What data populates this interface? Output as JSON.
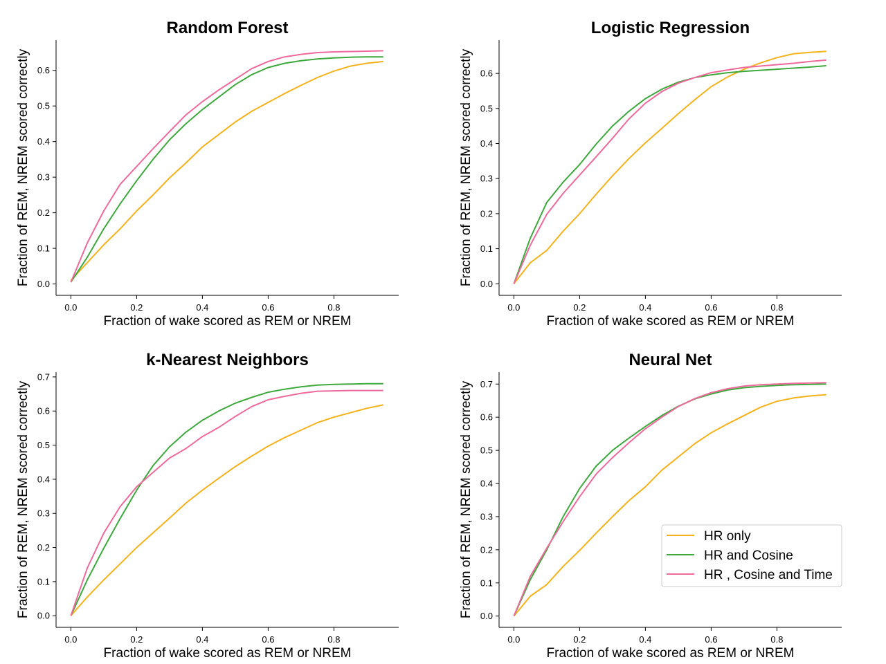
{
  "figure": {
    "legend_items": [
      "HR only",
      "HR and Cosine",
      "HR , Cosine and Time"
    ]
  },
  "chart_data": [
    {
      "type": "line",
      "title": "Random Forest",
      "xlabel": "Fraction of wake scored as REM or NREM",
      "ylabel": "Fraction of REM, NREM scored correctly",
      "xlim": [
        -0.045,
        0.997
      ],
      "ylim": [
        -0.032,
        0.685
      ],
      "xticks": [
        0.0,
        0.2,
        0.4,
        0.6,
        0.8
      ],
      "xtick_labels": [
        "0.0",
        "0.2",
        "0.4",
        "0.6",
        "0.8"
      ],
      "yticks": [
        0.0,
        0.1,
        0.2,
        0.3,
        0.4,
        0.5,
        0.6
      ],
      "ytick_labels": [
        "0.0",
        "0.1",
        "0.2",
        "0.3",
        "0.4",
        "0.5",
        "0.6"
      ],
      "grid": false,
      "legend": "none",
      "series": [
        {
          "name": "HR only",
          "color": "#f5b21b",
          "x": [
            0,
            0.05,
            0.1,
            0.15,
            0.2,
            0.25,
            0.3,
            0.35,
            0.4,
            0.45,
            0.5,
            0.55,
            0.6,
            0.65,
            0.7,
            0.75,
            0.8,
            0.85,
            0.9,
            0.95
          ],
          "y": [
            0.01,
            0.06,
            0.11,
            0.155,
            0.205,
            0.25,
            0.298,
            0.34,
            0.385,
            0.42,
            0.455,
            0.485,
            0.51,
            0.535,
            0.558,
            0.58,
            0.598,
            0.612,
            0.62,
            0.625
          ]
        },
        {
          "name": "HR and Cosine",
          "color": "#3da93d",
          "x": [
            0,
            0.05,
            0.1,
            0.15,
            0.2,
            0.25,
            0.3,
            0.35,
            0.4,
            0.45,
            0.5,
            0.55,
            0.6,
            0.65,
            0.7,
            0.75,
            0.8,
            0.85,
            0.9,
            0.95
          ],
          "y": [
            0.005,
            0.075,
            0.155,
            0.225,
            0.29,
            0.35,
            0.405,
            0.45,
            0.49,
            0.525,
            0.56,
            0.588,
            0.608,
            0.62,
            0.627,
            0.632,
            0.635,
            0.637,
            0.638,
            0.638
          ]
        },
        {
          "name": "HR , Cosine and Time",
          "color": "#ee6a9c",
          "x": [
            0,
            0.05,
            0.1,
            0.15,
            0.2,
            0.25,
            0.3,
            0.35,
            0.4,
            0.45,
            0.5,
            0.55,
            0.6,
            0.65,
            0.7,
            0.75,
            0.8,
            0.85,
            0.9,
            0.95
          ],
          "y": [
            0.005,
            0.115,
            0.205,
            0.28,
            0.33,
            0.38,
            0.428,
            0.475,
            0.512,
            0.545,
            0.575,
            0.605,
            0.625,
            0.638,
            0.645,
            0.65,
            0.652,
            0.653,
            0.654,
            0.655
          ]
        }
      ]
    },
    {
      "type": "line",
      "title": "Logistic Regression",
      "xlabel": "Fraction of wake scored as REM or NREM",
      "ylabel": "Fraction of REM, NREM scored correctly",
      "xlim": [
        -0.045,
        0.997
      ],
      "ylim": [
        -0.033,
        0.695
      ],
      "xticks": [
        0.0,
        0.2,
        0.4,
        0.6,
        0.8
      ],
      "xtick_labels": [
        "0.0",
        "0.2",
        "0.4",
        "0.6",
        "0.8"
      ],
      "yticks": [
        0.0,
        0.1,
        0.2,
        0.3,
        0.4,
        0.5,
        0.6
      ],
      "ytick_labels": [
        "0.0",
        "0.1",
        "0.2",
        "0.3",
        "0.4",
        "0.5",
        "0.6"
      ],
      "grid": false,
      "legend": "none",
      "series": [
        {
          "name": "HR only",
          "color": "#f5b21b",
          "x": [
            0,
            0.05,
            0.1,
            0.15,
            0.2,
            0.25,
            0.3,
            0.35,
            0.4,
            0.45,
            0.5,
            0.55,
            0.6,
            0.65,
            0.7,
            0.75,
            0.8,
            0.85,
            0.9,
            0.95
          ],
          "y": [
            0,
            0.06,
            0.095,
            0.15,
            0.2,
            0.255,
            0.308,
            0.357,
            0.402,
            0.443,
            0.485,
            0.525,
            0.562,
            0.59,
            0.612,
            0.63,
            0.645,
            0.656,
            0.66,
            0.663
          ]
        },
        {
          "name": "HR and Cosine",
          "color": "#3da93d",
          "x": [
            0,
            0.05,
            0.1,
            0.15,
            0.2,
            0.25,
            0.3,
            0.35,
            0.4,
            0.45,
            0.5,
            0.55,
            0.6,
            0.65,
            0.7,
            0.75,
            0.8,
            0.85,
            0.9,
            0.95
          ],
          "y": [
            0,
            0.13,
            0.232,
            0.29,
            0.34,
            0.398,
            0.45,
            0.492,
            0.528,
            0.555,
            0.575,
            0.588,
            0.596,
            0.602,
            0.606,
            0.609,
            0.612,
            0.615,
            0.618,
            0.622
          ]
        },
        {
          "name": "HR , Cosine and Time",
          "color": "#ee6a9c",
          "x": [
            0,
            0.05,
            0.1,
            0.15,
            0.2,
            0.25,
            0.3,
            0.35,
            0.4,
            0.45,
            0.5,
            0.55,
            0.6,
            0.65,
            0.7,
            0.75,
            0.8,
            0.85,
            0.9,
            0.95
          ],
          "y": [
            0,
            0.11,
            0.198,
            0.258,
            0.31,
            0.362,
            0.415,
            0.47,
            0.515,
            0.548,
            0.572,
            0.588,
            0.602,
            0.61,
            0.617,
            0.621,
            0.625,
            0.629,
            0.634,
            0.638
          ]
        }
      ]
    },
    {
      "type": "line",
      "title": "k-Nearest Neighbors",
      "xlabel": "Fraction of wake scored as REM or NREM",
      "ylabel": "Fraction of REM, NREM scored correctly",
      "xlim": [
        -0.045,
        0.997
      ],
      "ylim": [
        -0.034,
        0.714
      ],
      "xticks": [
        0.0,
        0.2,
        0.4,
        0.6,
        0.8
      ],
      "xtick_labels": [
        "0.0",
        "0.2",
        "0.4",
        "0.6",
        "0.8"
      ],
      "yticks": [
        0.0,
        0.1,
        0.2,
        0.3,
        0.4,
        0.5,
        0.6,
        0.7
      ],
      "ytick_labels": [
        "0.0",
        "0.1",
        "0.2",
        "0.3",
        "0.4",
        "0.5",
        "0.6",
        "0.7"
      ],
      "grid": false,
      "legend": "none",
      "series": [
        {
          "name": "HR only",
          "color": "#f5b21b",
          "x": [
            0,
            0.05,
            0.1,
            0.15,
            0.2,
            0.25,
            0.3,
            0.35,
            0.4,
            0.45,
            0.5,
            0.55,
            0.6,
            0.65,
            0.7,
            0.75,
            0.8,
            0.85,
            0.9,
            0.95
          ],
          "y": [
            0,
            0.055,
            0.105,
            0.152,
            0.2,
            0.243,
            0.286,
            0.33,
            0.368,
            0.403,
            0.437,
            0.468,
            0.497,
            0.522,
            0.544,
            0.566,
            0.582,
            0.595,
            0.608,
            0.618
          ]
        },
        {
          "name": "HR and Cosine",
          "color": "#3da93d",
          "x": [
            0,
            0.05,
            0.1,
            0.15,
            0.2,
            0.25,
            0.3,
            0.35,
            0.4,
            0.45,
            0.5,
            0.55,
            0.6,
            0.65,
            0.7,
            0.75,
            0.8,
            0.85,
            0.9,
            0.95
          ],
          "y": [
            0,
            0.105,
            0.198,
            0.285,
            0.368,
            0.44,
            0.495,
            0.538,
            0.573,
            0.6,
            0.623,
            0.64,
            0.655,
            0.664,
            0.671,
            0.676,
            0.678,
            0.679,
            0.68,
            0.68
          ]
        },
        {
          "name": "HR , Cosine and Time",
          "color": "#ee6a9c",
          "x": [
            0,
            0.05,
            0.1,
            0.15,
            0.2,
            0.25,
            0.3,
            0.35,
            0.4,
            0.45,
            0.5,
            0.55,
            0.6,
            0.65,
            0.7,
            0.75,
            0.8,
            0.85,
            0.9,
            0.95
          ],
          "y": [
            0,
            0.14,
            0.242,
            0.32,
            0.378,
            0.42,
            0.462,
            0.49,
            0.525,
            0.552,
            0.584,
            0.613,
            0.633,
            0.643,
            0.652,
            0.658,
            0.659,
            0.66,
            0.66,
            0.66
          ]
        }
      ]
    },
    {
      "type": "line",
      "title": "Neural Net",
      "xlabel": "Fraction of wake scored as REM or NREM",
      "ylabel": "Fraction of REM, NREM scored correctly",
      "xlim": [
        -0.045,
        0.997
      ],
      "ylim": [
        -0.034,
        0.736
      ],
      "xticks": [
        0.0,
        0.2,
        0.4,
        0.6,
        0.8
      ],
      "xtick_labels": [
        "0.0",
        "0.2",
        "0.4",
        "0.6",
        "0.8"
      ],
      "yticks": [
        0.0,
        0.1,
        0.2,
        0.3,
        0.4,
        0.5,
        0.6,
        0.7
      ],
      "ytick_labels": [
        "0.0",
        "0.1",
        "0.2",
        "0.3",
        "0.4",
        "0.5",
        "0.6",
        "0.7"
      ],
      "grid": false,
      "legend": "bottom-right",
      "series": [
        {
          "name": "HR only",
          "color": "#f5b21b",
          "x": [
            0,
            0.05,
            0.1,
            0.15,
            0.2,
            0.25,
            0.3,
            0.35,
            0.4,
            0.45,
            0.5,
            0.55,
            0.6,
            0.65,
            0.7,
            0.75,
            0.8,
            0.85,
            0.9,
            0.95
          ],
          "y": [
            0,
            0.06,
            0.095,
            0.15,
            0.198,
            0.25,
            0.3,
            0.348,
            0.39,
            0.44,
            0.48,
            0.52,
            0.553,
            0.58,
            0.605,
            0.63,
            0.648,
            0.658,
            0.664,
            0.668
          ]
        },
        {
          "name": "HR and Cosine",
          "color": "#3da93d",
          "x": [
            0,
            0.05,
            0.1,
            0.15,
            0.2,
            0.25,
            0.3,
            0.35,
            0.4,
            0.45,
            0.5,
            0.55,
            0.6,
            0.65,
            0.7,
            0.75,
            0.8,
            0.85,
            0.9,
            0.95
          ],
          "y": [
            0,
            0.11,
            0.2,
            0.3,
            0.385,
            0.452,
            0.5,
            0.537,
            0.572,
            0.605,
            0.633,
            0.655,
            0.67,
            0.682,
            0.689,
            0.693,
            0.696,
            0.698,
            0.699,
            0.7
          ]
        },
        {
          "name": "HR , Cosine and Time",
          "color": "#ee6a9c",
          "x": [
            0,
            0.05,
            0.1,
            0.15,
            0.2,
            0.25,
            0.3,
            0.35,
            0.4,
            0.45,
            0.5,
            0.55,
            0.6,
            0.65,
            0.7,
            0.75,
            0.8,
            0.85,
            0.9,
            0.95
          ],
          "y": [
            0,
            0.12,
            0.205,
            0.285,
            0.36,
            0.428,
            0.478,
            0.523,
            0.565,
            0.6,
            0.632,
            0.656,
            0.674,
            0.686,
            0.694,
            0.698,
            0.7,
            0.702,
            0.703,
            0.704
          ]
        }
      ]
    }
  ]
}
